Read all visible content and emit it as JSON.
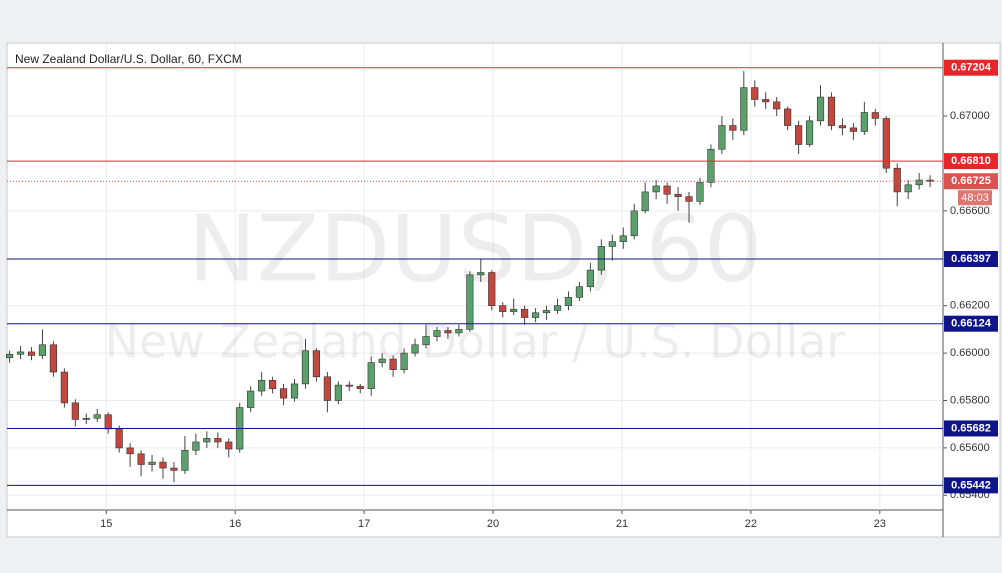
{
  "chart_data": {
    "type": "candlestick",
    "title": "New Zealand Dollar/U.S. Dollar, 60, FXCM",
    "watermark": "NZDUSD, 60",
    "watermark_subtitle": "New Zealand Dollar / U.S. Dollar",
    "xlim": [
      0.23,
      7.49
    ],
    "xticks": [
      {
        "value": 1,
        "label": "15"
      },
      {
        "value": 2,
        "label": "16"
      },
      {
        "value": 3,
        "label": "17"
      },
      {
        "value": 4,
        "label": "20"
      },
      {
        "value": 5,
        "label": "21"
      },
      {
        "value": 6,
        "label": "22"
      },
      {
        "value": 7,
        "label": "23"
      }
    ],
    "ylim": [
      0.65338,
      0.67304
    ],
    "yticks": [
      {
        "value": 0.654,
        "label": "0.65400"
      },
      {
        "value": 0.656,
        "label": "0.65600"
      },
      {
        "value": 0.658,
        "label": "0.65800"
      },
      {
        "value": 0.66,
        "label": "0.66000"
      },
      {
        "value": 0.662,
        "label": "0.66200"
      },
      {
        "value": 0.666,
        "label": "0.66600"
      },
      {
        "value": 0.67,
        "label": "0.67000"
      }
    ],
    "grid": true,
    "up_color": "#5ba06a",
    "down_color": "#c4473f",
    "levels": [
      {
        "value": 0.67204,
        "label": "0.67204",
        "color": "#e8262a"
      },
      {
        "value": 0.6681,
        "label": "0.66810",
        "color": "#e8262a"
      },
      {
        "value": 0.66397,
        "label": "0.66397",
        "color": "#10148a"
      },
      {
        "value": 0.66124,
        "label": "0.66124",
        "color": "#10148a"
      },
      {
        "value": 0.65682,
        "label": "0.65682",
        "color": "#10148a"
      },
      {
        "value": 0.65442,
        "label": "0.65442",
        "color": "#10148a"
      }
    ],
    "last_price": 0.66725,
    "last_price_color": "#d9534f",
    "countdown": "48:03",
    "x": [
      0.25,
      0.335,
      0.42,
      0.505,
      0.59,
      0.675,
      0.76,
      0.845,
      0.93,
      1.015,
      1.1,
      1.185,
      1.27,
      1.355,
      1.44,
      1.525,
      1.61,
      1.695,
      1.78,
      1.865,
      1.95,
      2.035,
      2.12,
      2.205,
      2.29,
      2.375,
      2.46,
      2.545,
      2.63,
      2.715,
      2.8,
      2.885,
      2.97,
      3.055,
      3.14,
      3.225,
      3.31,
      3.395,
      3.48,
      3.565,
      3.65,
      3.735,
      3.82,
      3.905,
      3.99,
      4.075,
      4.16,
      4.245,
      4.33,
      4.415,
      4.5,
      4.585,
      4.67,
      4.755,
      4.84,
      4.925,
      5.01,
      5.095,
      5.18,
      5.265,
      5.35,
      5.435,
      5.52,
      5.605,
      5.69,
      5.775,
      5.86,
      5.945,
      6.03,
      6.115,
      6.2,
      6.285,
      6.37,
      6.455,
      6.54,
      6.625,
      6.71,
      6.795,
      6.88,
      6.965,
      7.05,
      7.135,
      7.22,
      7.305,
      7.39
    ],
    "open": [
      0.6598,
      0.65995,
      0.66005,
      0.6599,
      0.66035,
      0.6592,
      0.6579,
      0.6572,
      0.65725,
      0.6574,
      0.6568,
      0.656,
      0.65575,
      0.6553,
      0.6554,
      0.65515,
      0.65505,
      0.6559,
      0.65625,
      0.6564,
      0.65625,
      0.65595,
      0.6577,
      0.6584,
      0.65885,
      0.6585,
      0.6581,
      0.6587,
      0.6601,
      0.659,
      0.658,
      0.65865,
      0.6586,
      0.6585,
      0.6596,
      0.65975,
      0.6593,
      0.66,
      0.66035,
      0.6607,
      0.66095,
      0.66085,
      0.661,
      0.6633,
      0.6634,
      0.662,
      0.66175,
      0.66185,
      0.6615,
      0.6617,
      0.6618,
      0.662,
      0.66235,
      0.6628,
      0.6635,
      0.6645,
      0.6647,
      0.66495,
      0.666,
      0.6668,
      0.66705,
      0.6667,
      0.6666,
      0.6664,
      0.6672,
      0.6686,
      0.6696,
      0.6694,
      0.6712,
      0.6707,
      0.6706,
      0.6703,
      0.6696,
      0.6688,
      0.6698,
      0.6708,
      0.6696,
      0.6695,
      0.66935,
      0.67015,
      0.6699,
      0.6678,
      0.6668,
      0.6671,
      0.6673
    ],
    "high": [
      0.6601,
      0.6603,
      0.66025,
      0.661,
      0.6605,
      0.65935,
      0.65805,
      0.65745,
      0.65765,
      0.6575,
      0.65695,
      0.6562,
      0.6559,
      0.6557,
      0.6556,
      0.6554,
      0.6565,
      0.6566,
      0.6567,
      0.65665,
      0.6564,
      0.6579,
      0.6586,
      0.6592,
      0.659,
      0.6587,
      0.6589,
      0.6606,
      0.6602,
      0.6592,
      0.6588,
      0.6588,
      0.6587,
      0.65985,
      0.66,
      0.6599,
      0.6602,
      0.6606,
      0.6612,
      0.6611,
      0.6611,
      0.6612,
      0.66345,
      0.66395,
      0.6635,
      0.66215,
      0.6623,
      0.662,
      0.6619,
      0.662,
      0.6623,
      0.6626,
      0.663,
      0.6638,
      0.6648,
      0.665,
      0.6653,
      0.6663,
      0.6672,
      0.6673,
      0.6672,
      0.667,
      0.6668,
      0.6674,
      0.6688,
      0.67,
      0.6699,
      0.6719,
      0.6715,
      0.671,
      0.6708,
      0.6704,
      0.6698,
      0.67,
      0.6713,
      0.671,
      0.6699,
      0.6697,
      0.6706,
      0.6703,
      0.67,
      0.668,
      0.6673,
      0.6676,
      0.6675
    ],
    "low": [
      0.6596,
      0.65975,
      0.6597,
      0.65975,
      0.659,
      0.6577,
      0.6569,
      0.657,
      0.6571,
      0.6566,
      0.6558,
      0.6552,
      0.6548,
      0.655,
      0.6547,
      0.65455,
      0.6549,
      0.6557,
      0.656,
      0.656,
      0.6556,
      0.6558,
      0.6575,
      0.6582,
      0.6583,
      0.6578,
      0.65795,
      0.6585,
      0.6588,
      0.6575,
      0.65785,
      0.6584,
      0.6583,
      0.6582,
      0.6594,
      0.659,
      0.65915,
      0.65985,
      0.6602,
      0.6605,
      0.6606,
      0.6607,
      0.6609,
      0.663,
      0.6618,
      0.6615,
      0.6616,
      0.6612,
      0.6613,
      0.6614,
      0.66165,
      0.6618,
      0.6622,
      0.6626,
      0.6633,
      0.6639,
      0.6644,
      0.6648,
      0.6659,
      0.6665,
      0.6663,
      0.666,
      0.6655,
      0.66625,
      0.667,
      0.6684,
      0.669,
      0.6692,
      0.6704,
      0.6703,
      0.67,
      0.6694,
      0.6684,
      0.6687,
      0.6696,
      0.6694,
      0.6692,
      0.669,
      0.6692,
      0.6696,
      0.6676,
      0.6662,
      0.6665,
      0.6669,
      0.667
    ],
    "close": [
      0.65995,
      0.66005,
      0.6599,
      0.66035,
      0.6592,
      0.6579,
      0.6572,
      0.65725,
      0.6574,
      0.6568,
      0.656,
      0.65575,
      0.6553,
      0.6554,
      0.65515,
      0.65505,
      0.6559,
      0.65625,
      0.6564,
      0.65625,
      0.65595,
      0.6577,
      0.6584,
      0.65885,
      0.6585,
      0.6581,
      0.6587,
      0.6601,
      0.659,
      0.658,
      0.65865,
      0.6586,
      0.6585,
      0.6596,
      0.65975,
      0.6593,
      0.66,
      0.66035,
      0.6607,
      0.66095,
      0.66085,
      0.661,
      0.6633,
      0.6634,
      0.662,
      0.66175,
      0.66185,
      0.6615,
      0.6617,
      0.6618,
      0.662,
      0.66235,
      0.6628,
      0.6635,
      0.6645,
      0.6647,
      0.66495,
      0.666,
      0.6668,
      0.66705,
      0.6667,
      0.6666,
      0.6664,
      0.6672,
      0.6686,
      0.6696,
      0.6694,
      0.6712,
      0.6707,
      0.6706,
      0.6703,
      0.6696,
      0.6688,
      0.6698,
      0.6708,
      0.6696,
      0.6695,
      0.66935,
      0.67015,
      0.6699,
      0.6678,
      0.6668,
      0.6671,
      0.6673,
      0.66725
    ]
  }
}
